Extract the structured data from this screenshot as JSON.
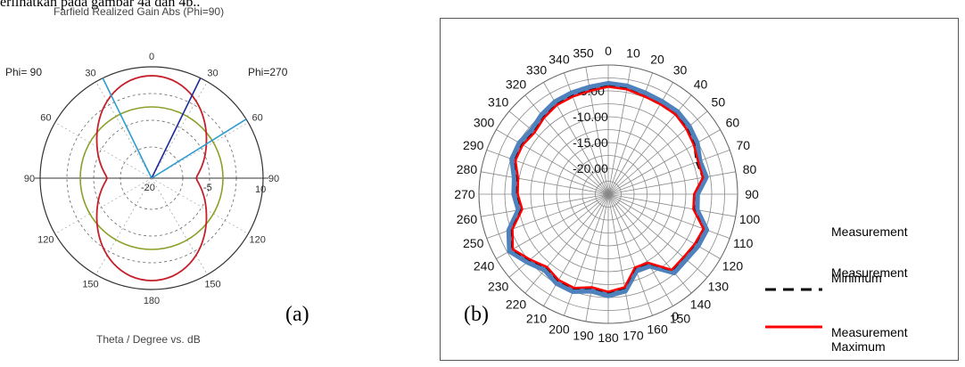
{
  "caption_top": "erlihatkan pada gambar 4a dan 4b..",
  "panel_a": {
    "label": "(a)",
    "title": "Farfield Realized Gain Abs (Phi=90)",
    "footer": "Theta / Degree vs. dB",
    "phi_left": "Phi= 90",
    "phi_right": "Phi=270",
    "angle_labels": [
      {
        "text": "0",
        "angle": 0
      },
      {
        "text": "30",
        "angle": -30
      },
      {
        "text": "30",
        "angle": 30
      },
      {
        "text": "60",
        "angle": -60
      },
      {
        "text": "60",
        "angle": 60
      },
      {
        "text": "90",
        "angle": -90
      },
      {
        "text": "90",
        "angle": 90
      },
      {
        "text": "120",
        "angle": -120
      },
      {
        "text": "120",
        "angle": 120
      },
      {
        "text": "150",
        "angle": -150
      },
      {
        "text": "150",
        "angle": 150
      },
      {
        "text": "180",
        "angle": 180
      }
    ],
    "extra_labels": [
      "-20",
      "-5",
      "10"
    ],
    "colors": {
      "pattern": "#c4202a",
      "reference": "#8aa02a",
      "beam": "#2e9cd0",
      "beam_center": "#1e2a9a",
      "grid": "#555555"
    }
  },
  "chart_data": {
    "type": "polar",
    "title": "",
    "legend": [
      "Measurement",
      "Measurement Minimum",
      "Measurement Maximum"
    ],
    "radial_ticks": [
      "-20.00",
      "-15.00",
      "-10.00",
      "-5.00"
    ],
    "radial_range": [
      -25,
      0
    ],
    "angle_tick_labels": [
      "0",
      "10",
      "20",
      "30",
      "40",
      "50",
      "60",
      "70",
      "80",
      "90",
      "100",
      "110",
      "120",
      "130",
      "140",
      "150",
      "160",
      "170",
      "0",
      "180",
      "190",
      "200",
      "210",
      "220",
      "230",
      "240",
      "250",
      "260",
      "270",
      "280",
      "290",
      "300",
      "310",
      "320",
      "330",
      "340",
      "350"
    ],
    "angles": [
      0,
      10,
      20,
      30,
      40,
      50,
      60,
      70,
      80,
      90,
      100,
      110,
      120,
      130,
      140,
      150,
      160,
      170,
      180,
      190,
      200,
      210,
      220,
      230,
      240,
      250,
      260,
      270,
      280,
      290,
      300,
      310,
      320,
      330,
      340,
      350
    ],
    "series": [
      {
        "name": "Measurement",
        "color": "#4f81bd",
        "values": [
          -3.6,
          -3.8,
          -4.2,
          -4.3,
          -4.2,
          -4.6,
          -5.2,
          -6.2,
          -5.8,
          -7.8,
          -7.6,
          -4.8,
          -5.0,
          -5.4,
          -5.2,
          -9.0,
          -9.2,
          -6.0,
          -5.4,
          -6.0,
          -5.0,
          -5.1,
          -5.9,
          -4.6,
          -3.0,
          -4.6,
          -7.4,
          -6.8,
          -6.6,
          -5.2,
          -5.2,
          -5.7,
          -5.0,
          -4.4,
          -4.2,
          -4.0
        ]
      },
      {
        "name": "Measurement Minimum",
        "color": "#000000",
        "values": [
          -4.1,
          -4.3,
          -4.8,
          -4.9,
          -4.8,
          -5.2,
          -5.8,
          -6.8,
          -6.4,
          -8.4,
          -8.2,
          -5.4,
          -5.6,
          -6.0,
          -5.8,
          -9.6,
          -9.8,
          -6.6,
          -6.0,
          -6.6,
          -5.6,
          -5.7,
          -6.5,
          -5.2,
          -3.6,
          -5.2,
          -8.0,
          -7.4,
          -7.2,
          -5.8,
          -5.8,
          -6.3,
          -5.6,
          -5.0,
          -4.8,
          -4.6
        ]
      },
      {
        "name": "Measurement Maximum",
        "color": "#ff0000",
        "values": [
          -4.2,
          -4.4,
          -4.8,
          -4.9,
          -4.8,
          -5.3,
          -5.9,
          -6.5,
          -6.4,
          -8.4,
          -8.3,
          -5.4,
          -5.7,
          -6.0,
          -5.9,
          -9.7,
          -9.9,
          -6.7,
          -6.1,
          -6.7,
          -5.7,
          -5.8,
          -6.6,
          -5.3,
          -3.7,
          -5.3,
          -8.1,
          -7.5,
          -7.3,
          -5.9,
          -5.9,
          -6.4,
          -5.7,
          -5.1,
          -4.9,
          -4.7
        ]
      }
    ]
  },
  "panel_b": {
    "label": "(b)",
    "legend_lines": {
      "measurement": "Measurement",
      "min_l1": "Measurement",
      "min_l2": "Minimum",
      "max_l1": "Measurement",
      "max_l2": "Maximum"
    }
  }
}
